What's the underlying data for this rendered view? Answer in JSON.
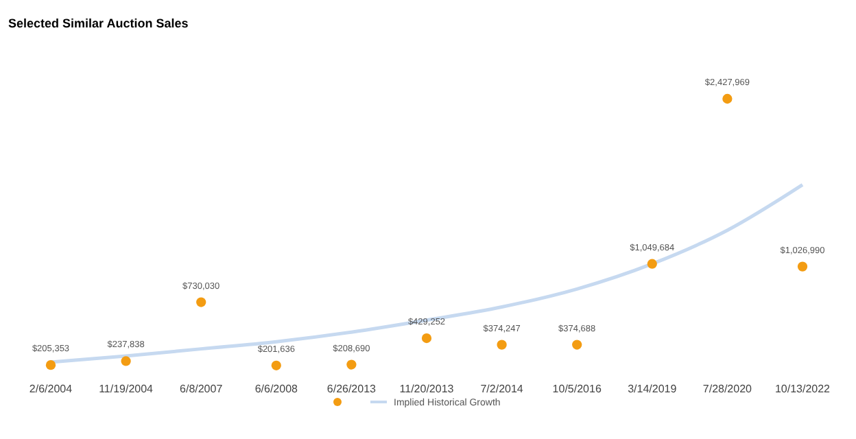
{
  "chart_data": {
    "type": "scatter",
    "title": "Selected Similar Auction Sales",
    "categories": [
      "2/6/2004",
      "11/19/2004",
      "6/8/2007",
      "6/6/2008",
      "6/26/2013",
      "11/20/2013",
      "7/2/2014",
      "10/5/2016",
      "3/14/2019",
      "7/28/2020",
      "10/13/2022"
    ],
    "series": [
      {
        "color": "#f39c12",
        "marker": "circle",
        "values": [
          205353,
          237838,
          730030,
          201636,
          208690,
          429252,
          374247,
          374688,
          1049684,
          2427969,
          1026990
        ],
        "value_labels": [
          "$205,353",
          "$237,838",
          "$730,030",
          "$201,636",
          "$208,690",
          "$429,252",
          "$374,247",
          "$374,688",
          "$1,049,684",
          "$2,427,969",
          "$1,026,990"
        ]
      },
      {
        "type": "line",
        "name": "Implied Historical Growth",
        "color": "#c6d9f0",
        "values": [
          230000,
          280000,
          340000,
          400000,
          480000,
          580000,
          690000,
          840000,
          1050000,
          1330000,
          1710000
        ]
      }
    ],
    "tick_labels": "x",
    "legend": "bottom"
  }
}
